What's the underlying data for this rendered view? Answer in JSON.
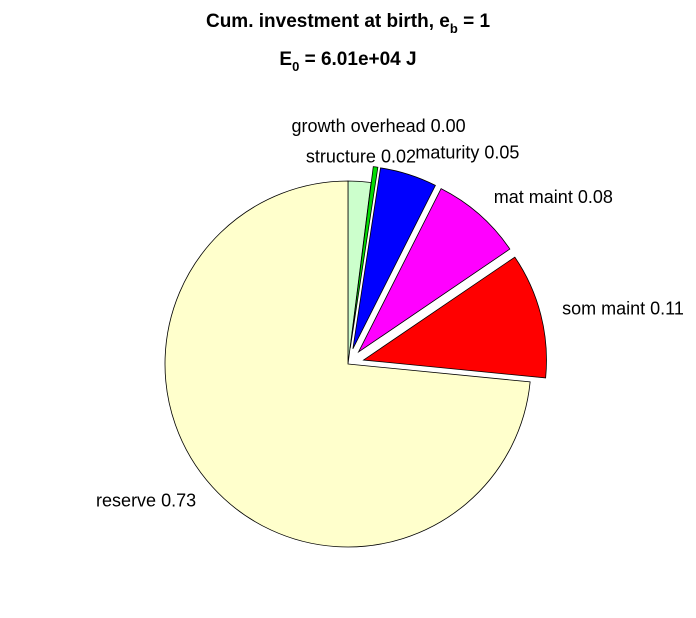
{
  "chart_data": {
    "type": "pie",
    "title": [
      [
        "Cum. investment at birth, e",
        "b",
        " = 1"
      ],
      [
        "E",
        "0",
        " = 6.01e+04 J"
      ]
    ],
    "categories": [
      "structure",
      "growth overhead",
      "maturity",
      "mat maint",
      "som maint",
      "reserve"
    ],
    "values": [
      0.02,
      0.004,
      0.05,
      0.08,
      0.11,
      0.73
    ],
    "value_labels": [
      "0.02",
      "0.00",
      "0.05",
      "0.08",
      "0.11",
      "0.73"
    ],
    "colors": [
      "#ccffcc",
      "#00dd00",
      "#0000ff",
      "#ff00ff",
      "#ff0000",
      "#ffffcc"
    ],
    "exploded": [
      false,
      true,
      true,
      true,
      true,
      false
    ]
  }
}
